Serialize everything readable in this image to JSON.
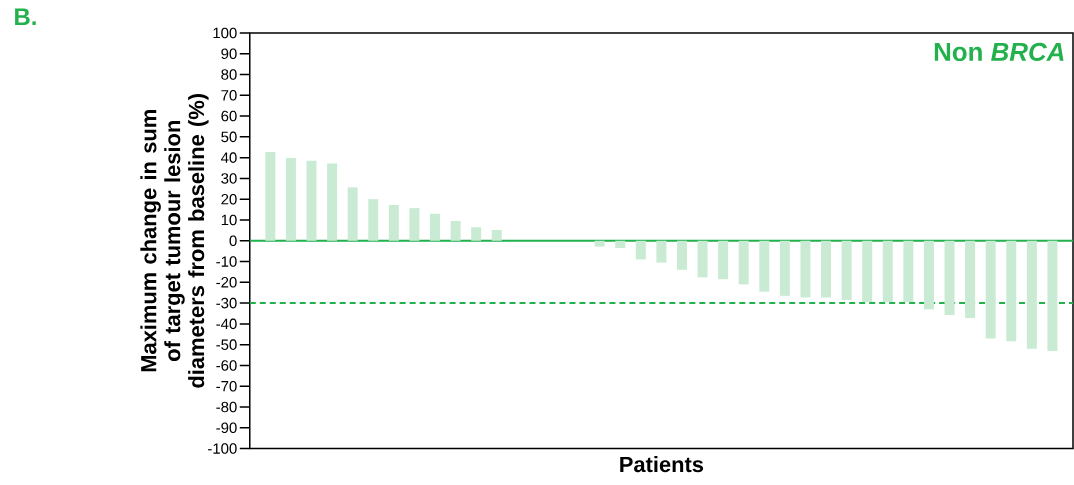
{
  "chart_data": {
    "type": "bar",
    "xlabel": "Patients",
    "ylabel": "Maximum change in sum of target tumour lesion diameters from baseline (%)",
    "categories": [
      null,
      null,
      null,
      null,
      null,
      null,
      null,
      null,
      null,
      null,
      null,
      null,
      null,
      null,
      null,
      null,
      null,
      null,
      null,
      null,
      null,
      null,
      null,
      null,
      null,
      null,
      null,
      null,
      null,
      null,
      null,
      null,
      null,
      null,
      null,
      null,
      null,
      null,
      null
    ],
    "values": [
      42.7,
      39.8,
      38.5,
      37.2,
      25.7,
      20,
      17.2,
      15.7,
      13,
      9.5,
      6.5,
      5.2,
      0,
      0,
      0,
      0,
      -2.8,
      -3.5,
      -9,
      -10.5,
      -14,
      -17.6,
      -18.5,
      -21,
      -24.5,
      -26.5,
      -27.3,
      -27.3,
      -28.5,
      -29.5,
      -29.5,
      -29.5,
      -33,
      -35.7,
      -37.2,
      -47,
      -48.4,
      -52,
      -53
    ],
    "color": "#c9ebd4",
    "ylim": [
      -100,
      100
    ],
    "yticks": [
      -100,
      -90,
      -80,
      -70,
      -60,
      -50,
      -40,
      -30,
      -20,
      -10,
      0,
      10,
      20,
      30,
      40,
      50,
      60,
      70,
      80,
      90,
      100
    ],
    "ref_lines": [
      {
        "axis": "y",
        "value": 0,
        "color": "#22b14c",
        "line_style": "solid"
      },
      {
        "axis": "y",
        "value": -30,
        "color": "#22b14c",
        "line_style": "dashed"
      }
    ],
    "annotations": [
      "B.",
      "Non *BRCA*"
    ]
  }
}
